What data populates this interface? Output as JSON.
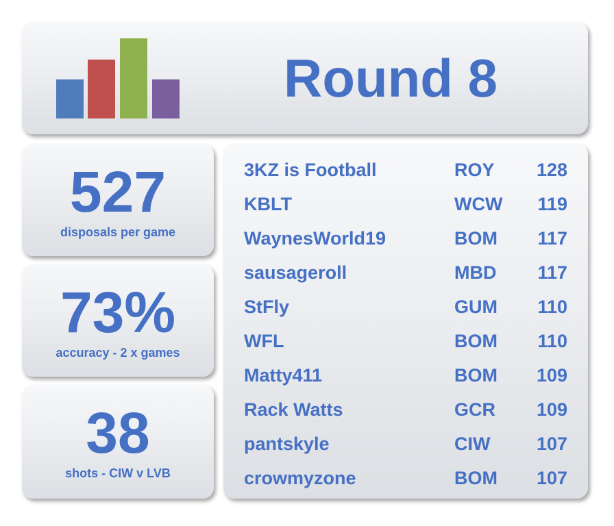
{
  "header": {
    "title": "Round 8",
    "logo_icon": "bar-chart-icon",
    "logo_colors": [
      "#4f7cbb",
      "#c0504d",
      "#8fb04e",
      "#7a5f9e"
    ]
  },
  "stats": [
    {
      "value": "527",
      "label": "disposals per game"
    },
    {
      "value": "73%",
      "label": "accuracy - 2 x games"
    },
    {
      "value": "38",
      "label": "shots - CIW v LVB"
    }
  ],
  "leaderboard": [
    {
      "name": "3KZ is Football",
      "team": "ROY",
      "score": "128"
    },
    {
      "name": "KBLT",
      "team": "WCW",
      "score": "119"
    },
    {
      "name": "WaynesWorld19",
      "team": "BOM",
      "score": "117"
    },
    {
      "name": "sausageroll",
      "team": "MBD",
      "score": "117"
    },
    {
      "name": "StFly",
      "team": "GUM",
      "score": "110"
    },
    {
      "name": "WFL",
      "team": "BOM",
      "score": "110"
    },
    {
      "name": "Matty411",
      "team": "BOM",
      "score": "109"
    },
    {
      "name": "Rack Watts",
      "team": "GCR",
      "score": "109"
    },
    {
      "name": "pantskyle",
      "team": "CIW",
      "score": "107"
    },
    {
      "name": "crowmyzone",
      "team": "BOM",
      "score": "107"
    }
  ],
  "theme": {
    "accent": "#4570c4"
  }
}
